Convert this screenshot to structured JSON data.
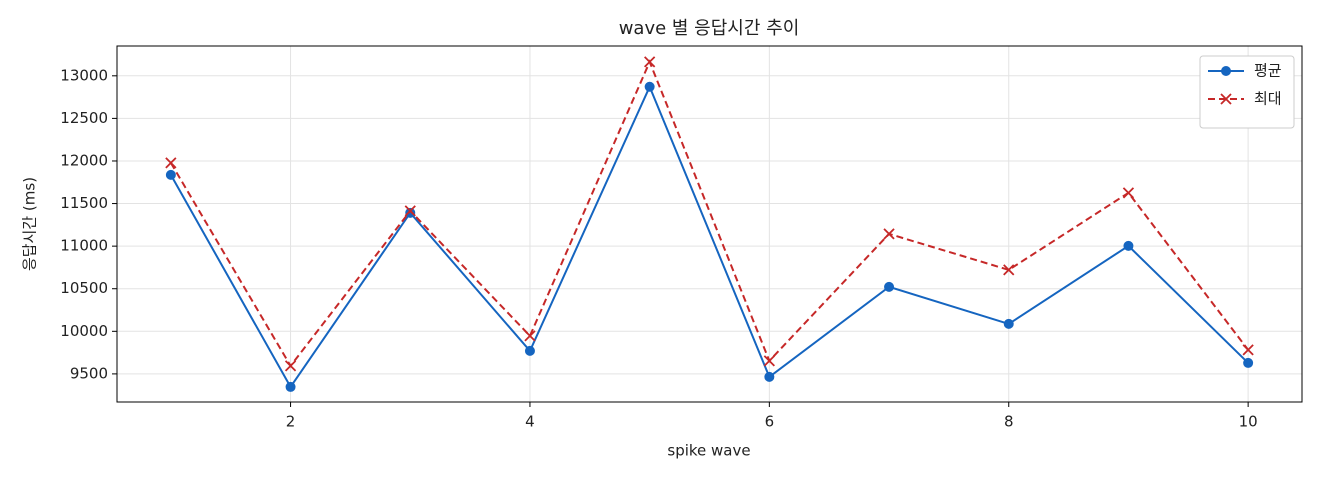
{
  "chart_data": {
    "type": "line",
    "title": "wave 별 응답시간 추이",
    "xlabel": "spike wave",
    "ylabel": "응답시간 (ms)",
    "x": [
      1,
      2,
      3,
      4,
      5,
      6,
      7,
      8,
      9,
      10
    ],
    "series": [
      {
        "name": "평균",
        "color": "#1565c0",
        "marker": "circle",
        "dash": "solid",
        "values": [
          11837,
          9347,
          11391,
          9770,
          12871,
          9465,
          10522,
          10087,
          11003,
          9629
        ]
      },
      {
        "name": "최대",
        "color": "#c62828",
        "marker": "cross",
        "dash": "dashed",
        "values": [
          11978,
          9594,
          11414,
          9946,
          13164,
          9653,
          11144,
          10721,
          11626,
          9782
        ]
      }
    ],
    "xlim": [
      0.55,
      10.45
    ],
    "xticks": [
      2,
      4,
      6,
      8,
      10
    ],
    "ylim": [
      9170,
      13350
    ],
    "yticks": [
      9500,
      10000,
      10500,
      11000,
      11500,
      12000,
      12500,
      13000
    ],
    "grid": true,
    "legend": "upper-right"
  }
}
